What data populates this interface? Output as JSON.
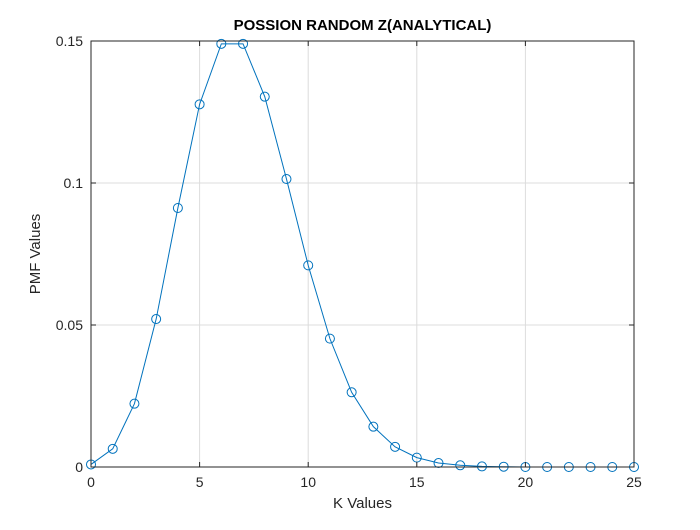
{
  "chart_data": {
    "type": "line",
    "title": "POSSION RANDOM Z(ANALYTICAL)",
    "xlabel": "K Values",
    "ylabel": "PMF Values",
    "xlim": [
      0,
      25
    ],
    "ylim": [
      0,
      0.15
    ],
    "xticks": [
      0,
      5,
      10,
      15,
      20,
      25
    ],
    "yticks": [
      0,
      0.05,
      0.1,
      0.15
    ],
    "xtick_labels": [
      "0",
      "5",
      "10",
      "15",
      "20",
      "25"
    ],
    "ytick_labels": [
      "0",
      "0.05",
      "0.1",
      "0.15"
    ],
    "grid": true,
    "box": true,
    "marker": "circle",
    "series": [
      {
        "color": "#0072BD",
        "x": [
          0,
          1,
          2,
          3,
          4,
          5,
          6,
          7,
          8,
          9,
          10,
          11,
          12,
          13,
          14,
          15,
          16,
          17,
          18,
          19,
          20,
          21,
          22,
          23,
          24,
          25
        ],
        "y": [
          0.0009,
          0.0064,
          0.0223,
          0.0521,
          0.0912,
          0.1277,
          0.149,
          0.149,
          0.1304,
          0.1014,
          0.071,
          0.0452,
          0.0263,
          0.0142,
          0.0071,
          0.0033,
          0.0014,
          0.0006,
          0.0002,
          0.0001,
          0.0,
          0.0,
          0.0,
          0.0,
          0.0,
          0.0
        ]
      }
    ]
  }
}
